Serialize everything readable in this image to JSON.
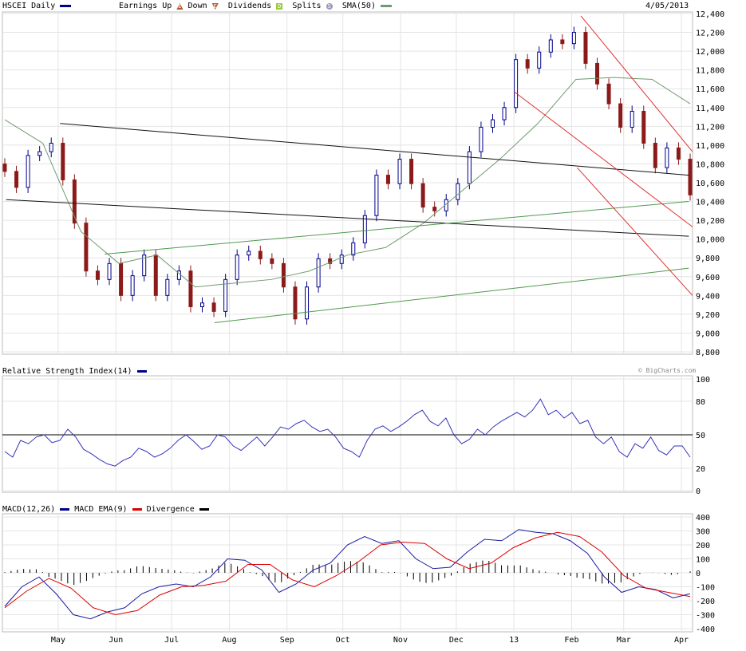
{
  "header": {
    "symbol_label": "HSCEI Daily",
    "earnings_label": "Earnings",
    "up_label": "Up",
    "down_label": "Down",
    "dividends_label": "Dividends",
    "splits_label": "Splits",
    "sma_label": "SMA(50)",
    "date": "4/05/2013",
    "up_glyph": "E",
    "down_glyph": "E",
    "div_glyph": "D",
    "split_glyph": "S"
  },
  "colors": {
    "price_up": "#00008b",
    "price_down": "#8b1a1a",
    "sma": "#6f9a6f",
    "rsi": "#3333bb",
    "macd": "#1a1aa0",
    "ema": "#dd0000",
    "div": "#000000",
    "grid": "#e4e4e4",
    "red_channel": "#e03030",
    "green_line": "#4f9a4f"
  },
  "copyright": "© BigCharts.com",
  "chart_data": [
    {
      "type": "candlestick",
      "title": "HSCEI Daily",
      "x_start": "2012-04-01",
      "x_end": "2013-04-07",
      "ylim": [
        8800,
        12400
      ],
      "y_ticks": [
        8800,
        9000,
        9200,
        9400,
        9600,
        9800,
        10000,
        10200,
        10400,
        10600,
        10800,
        11000,
        11200,
        11400,
        11600,
        11800,
        12000,
        12200,
        12400
      ],
      "x_ticks": [
        {
          "label": "May",
          "date": "2012-05-01"
        },
        {
          "label": "Jun",
          "date": "2012-06-01"
        },
        {
          "label": "Jul",
          "date": "2012-07-01"
        },
        {
          "label": "Aug",
          "date": "2012-08-01"
        },
        {
          "label": "Sep",
          "date": "2012-09-01"
        },
        {
          "label": "Oct",
          "date": "2012-10-01"
        },
        {
          "label": "Nov",
          "date": "2012-11-01"
        },
        {
          "label": "Dec",
          "date": "2012-12-01"
        },
        {
          "label": "13",
          "date": "2013-01-01"
        },
        {
          "label": "Feb",
          "date": "2013-02-01"
        },
        {
          "label": "Mar",
          "date": "2013-03-01"
        },
        {
          "label": "Apr",
          "date": "2013-04-01"
        }
      ],
      "closes": [
        10720,
        10550,
        10890,
        10930,
        11020,
        10630,
        10170,
        9660,
        9570,
        9740,
        9400,
        9610,
        9830,
        9400,
        9570,
        9660,
        9280,
        9320,
        9230,
        9570,
        9830,
        9870,
        9790,
        9740,
        9490,
        9150,
        9490,
        9790,
        9740,
        9830,
        9960,
        10250,
        10680,
        10590,
        10850,
        10590,
        10340,
        10300,
        10420,
        10590,
        10930,
        11190,
        11270,
        11400,
        11910,
        11820,
        11990,
        12120,
        12080,
        12200,
        11870,
        11650,
        11440,
        11190,
        11360,
        11020,
        10760,
        10970,
        10850,
        10470
      ],
      "sma50": [
        11270,
        11020,
        10080,
        9740,
        9830,
        9490,
        9530,
        9570,
        9660,
        9830,
        9910,
        10170,
        10510,
        10850,
        11230,
        11700,
        11720,
        11700,
        11440
      ],
      "trendlines": [
        {
          "color": "black",
          "from": [
            "2012-05-02",
            11230
          ],
          "to": [
            "2013-04-05",
            10680
          ]
        },
        {
          "color": "black",
          "from": [
            "2012-04-03",
            10420
          ],
          "to": [
            "2013-04-05",
            10030
          ]
        },
        {
          "color": "green",
          "from": [
            "2012-05-26",
            9840
          ],
          "to": [
            "2013-04-05",
            10400
          ]
        },
        {
          "color": "green",
          "from": [
            "2012-07-24",
            9110
          ],
          "to": [
            "2013-04-05",
            9690
          ]
        },
        {
          "color": "red",
          "from": [
            "2013-02-06",
            12375
          ],
          "to": [
            "2013-04-07",
            10930
          ]
        },
        {
          "color": "red",
          "from": [
            "2013-01-01",
            11570
          ],
          "to": [
            "2013-04-07",
            10130
          ]
        },
        {
          "color": "red",
          "from": [
            "2013-02-04",
            10760
          ],
          "to": [
            "2013-04-07",
            9400
          ]
        }
      ]
    },
    {
      "type": "line",
      "title": "Relative Strength Index(14)",
      "ylim": [
        0,
        100
      ],
      "y_ticks": [
        0,
        20,
        50,
        80,
        100
      ],
      "reference": 50,
      "values": [
        35,
        30,
        45,
        42,
        48,
        50,
        43,
        45,
        55,
        48,
        37,
        33,
        28,
        24,
        22,
        27,
        30,
        38,
        35,
        30,
        33,
        38,
        45,
        50,
        44,
        37,
        40,
        50,
        48,
        40,
        36,
        42,
        48,
        40,
        48,
        57,
        55,
        60,
        63,
        57,
        53,
        55,
        48,
        38,
        35,
        30,
        45,
        55,
        58,
        53,
        57,
        62,
        68,
        72,
        62,
        58,
        65,
        50,
        42,
        46,
        55,
        50,
        57,
        62,
        66,
        70,
        66,
        72,
        82,
        68,
        72,
        65,
        70,
        60,
        63,
        48,
        42,
        48,
        35,
        30,
        42,
        38,
        48,
        36,
        32,
        40,
        40,
        30
      ]
    },
    {
      "type": "line",
      "title": "MACD",
      "legend": [
        "MACD(12,26)",
        "MACD EMA(9)",
        "Divergence"
      ],
      "ylim": [
        -400,
        400
      ],
      "y_ticks": [
        400,
        300,
        200,
        100,
        0,
        -100,
        -200,
        -300,
        -400
      ],
      "macd": [
        -240,
        -100,
        -30,
        -150,
        -300,
        -330,
        -280,
        -250,
        -150,
        -100,
        -80,
        -100,
        -30,
        100,
        90,
        20,
        -140,
        -80,
        20,
        70,
        200,
        260,
        210,
        230,
        100,
        30,
        40,
        150,
        240,
        230,
        310,
        290,
        280,
        230,
        140,
        -30,
        -140,
        -100,
        -120,
        -180,
        -150
      ],
      "ema": [
        -250,
        -130,
        -40,
        -110,
        -250,
        -300,
        -270,
        -160,
        -100,
        -90,
        -60,
        60,
        60,
        -50,
        -100,
        -20,
        80,
        200,
        220,
        210,
        100,
        30,
        70,
        180,
        250,
        290,
        260,
        150,
        -20,
        -110,
        -140,
        -170
      ]
    }
  ]
}
